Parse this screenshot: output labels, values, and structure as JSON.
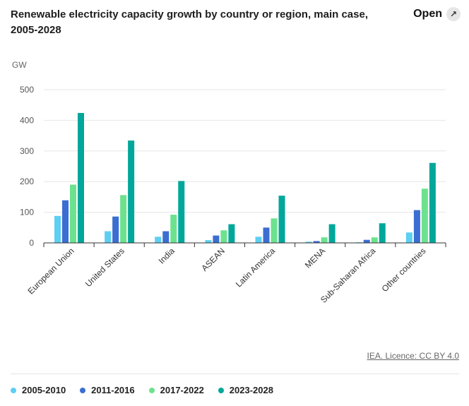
{
  "header": {
    "title": "Renewable electricity capacity growth by country or region, main case, 2005-2028",
    "open_label": "Open",
    "open_icon": "expand-arrow-icon"
  },
  "footer": {
    "credit": "IEA. Licence: CC BY 4.0"
  },
  "chart_data": {
    "type": "bar",
    "title": "Renewable electricity capacity growth by country or region, main case, 2005-2028",
    "ylabel": "GW",
    "xlabel": "",
    "ylim": [
      0,
      500
    ],
    "yticks": [
      0,
      100,
      200,
      300,
      400,
      500
    ],
    "grid": true,
    "legend_position": "bottom",
    "categories": [
      "European Union",
      "United States",
      "India",
      "ASEAN",
      "Latin America",
      "MENA",
      "Sub-Saharan Africa",
      "Other countries"
    ],
    "series": [
      {
        "name": "2005-2010",
        "color": "#5ccff2",
        "values": [
          88,
          38,
          20,
          9,
          20,
          4,
          2,
          34
        ]
      },
      {
        "name": "2011-2016",
        "color": "#3b6ed1",
        "values": [
          139,
          86,
          38,
          24,
          50,
          6,
          10,
          107
        ]
      },
      {
        "name": "2017-2022",
        "color": "#6ce28f",
        "values": [
          190,
          156,
          92,
          41,
          80,
          18,
          18,
          177
        ]
      },
      {
        "name": "2023-2028",
        "color": "#00a79a",
        "values": [
          424,
          334,
          202,
          61,
          154,
          61,
          64,
          261
        ]
      }
    ]
  }
}
